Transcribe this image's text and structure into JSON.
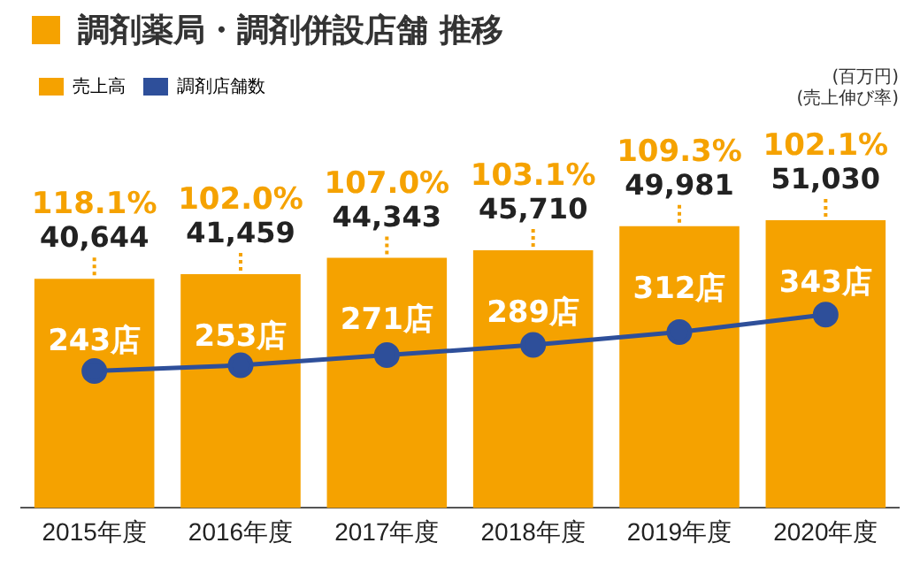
{
  "chart_data": {
    "type": "bar",
    "title": "調剤薬局・調剤併設店舗 推移",
    "categories": [
      "2015年度",
      "2016年度",
      "2017年度",
      "2018年度",
      "2019年度",
      "2020年度"
    ],
    "series": [
      {
        "name": "売上高",
        "color": "#f5a200",
        "values": [
          40644,
          41459,
          44343,
          45710,
          49981,
          51030
        ],
        "value_labels": [
          "40,644",
          "41,459",
          "44,343",
          "45,710",
          "49,981",
          "51,030"
        ]
      },
      {
        "name": "調剤店舗数",
        "type": "line",
        "axis": "y2",
        "color": "#2e4f9a",
        "values": [
          243,
          253,
          271,
          289,
          312,
          343
        ],
        "value_labels": [
          "243店",
          "253店",
          "271店",
          "289店",
          "312店",
          "343店"
        ]
      }
    ],
    "tick_labels": "x",
    "grid": false,
    "legend": "top left",
    "marker": "circle",
    "annotations": [
      {
        "text": "118.1%",
        "x": "2015年度",
        "y": 40644
      },
      {
        "text": "102.0%",
        "x": "2016年度",
        "y": 41459
      },
      {
        "text": "107.0%",
        "x": "2017年度",
        "y": 44343
      },
      {
        "text": "103.1%",
        "x": "2018年度",
        "y": 45710
      },
      {
        "text": "109.3%",
        "x": "2019年度",
        "y": 49981
      },
      {
        "text": "102.1%",
        "x": "2020年度",
        "y": 51030
      },
      "(百万円)",
      "(売上伸び率)"
    ]
  }
}
